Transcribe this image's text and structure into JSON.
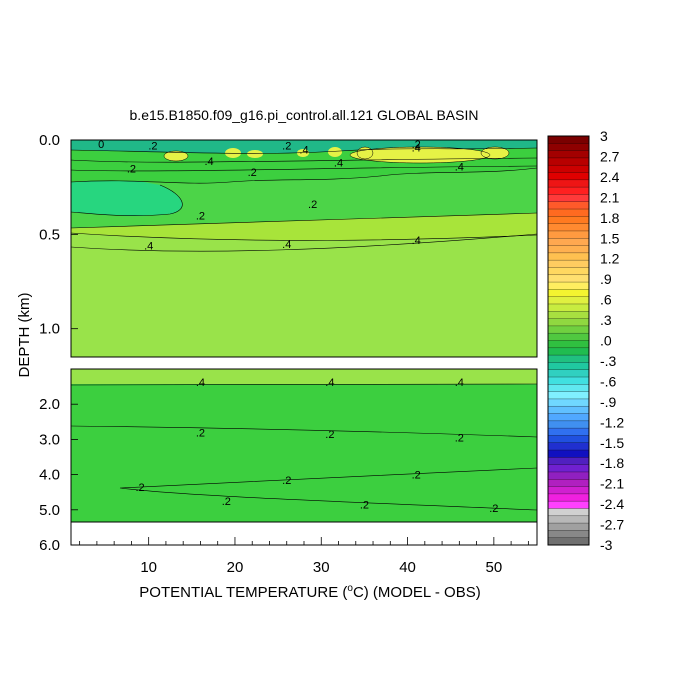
{
  "chart_data": {
    "type": "heatmap",
    "title": "b.e15.B1850.f09_g16.pi_control.all.121 GLOBAL BASIN",
    "xlabel_prefix": "POTENTIAL TEMPERATURE (",
    "xlabel_unit_sup": "o",
    "xlabel_suffix": "C) (MODEL - OBS)",
    "ylabel": "DEPTH (km)",
    "xlim": [
      1,
      55
    ],
    "x_ticks": [
      {
        "value": 10,
        "label": "10"
      },
      {
        "value": 20,
        "label": "20"
      },
      {
        "value": 30,
        "label": "30"
      },
      {
        "value": 40,
        "label": "40"
      },
      {
        "value": 50,
        "label": "50"
      }
    ],
    "upper_panel": {
      "ylim": [
        0.0,
        1.15
      ],
      "y_ticks": [
        {
          "value": 0.0,
          "label": "0.0"
        },
        {
          "value": 0.5,
          "label": "0.5"
        },
        {
          "value": 1.0,
          "label": "1.0"
        }
      ],
      "contour_labels": [
        {
          "x": 4.5,
          "y": 0.02,
          "text": "0"
        },
        {
          "x": 10.5,
          "y": 0.03,
          "text": ".2"
        },
        {
          "x": 17,
          "y": 0.11,
          "text": ".4"
        },
        {
          "x": 8,
          "y": 0.15,
          "text": ".2"
        },
        {
          "x": 22,
          "y": 0.17,
          "text": ".2"
        },
        {
          "x": 26,
          "y": 0.03,
          "text": ".2"
        },
        {
          "x": 28,
          "y": 0.05,
          "text": ".4"
        },
        {
          "x": 32,
          "y": 0.12,
          "text": ".4"
        },
        {
          "x": 41,
          "y": 0.02,
          "text": ".2"
        },
        {
          "x": 41,
          "y": 0.04,
          "text": ".4"
        },
        {
          "x": 46,
          "y": 0.14,
          "text": ".4"
        },
        {
          "x": 29,
          "y": 0.34,
          "text": ".2"
        },
        {
          "x": 16,
          "y": 0.4,
          "text": ".2"
        },
        {
          "x": 10,
          "y": 0.56,
          "text": ".4"
        },
        {
          "x": 26,
          "y": 0.55,
          "text": ".4"
        },
        {
          "x": 41,
          "y": 0.53,
          "text": ".4"
        }
      ]
    },
    "lower_panel": {
      "ylim": [
        1.0,
        6.0
      ],
      "y_ticks": [
        {
          "value": 2.0,
          "label": "2.0"
        },
        {
          "value": 3.0,
          "label": "3.0"
        },
        {
          "value": 4.0,
          "label": "4.0"
        },
        {
          "value": 5.0,
          "label": "5.0"
        },
        {
          "value": 6.0,
          "label": "6.0"
        }
      ],
      "contour_labels": [
        {
          "x": 16,
          "y": 1.37,
          "text": ".4"
        },
        {
          "x": 31,
          "y": 1.37,
          "text": ".4"
        },
        {
          "x": 46,
          "y": 1.37,
          "text": ".4"
        },
        {
          "x": 16,
          "y": 2.8,
          "text": ".2"
        },
        {
          "x": 31,
          "y": 2.85,
          "text": ".2"
        },
        {
          "x": 46,
          "y": 2.95,
          "text": ".2"
        },
        {
          "x": 9,
          "y": 4.35,
          "text": ".2"
        },
        {
          "x": 26,
          "y": 4.15,
          "text": ".2"
        },
        {
          "x": 41,
          "y": 4.0,
          "text": ".2"
        },
        {
          "x": 19,
          "y": 4.75,
          "text": ".2"
        },
        {
          "x": 35,
          "y": 4.85,
          "text": ".2"
        },
        {
          "x": 50,
          "y": 4.95,
          "text": ".2"
        }
      ]
    },
    "colorbar": {
      "labels": [
        "3",
        "2.7",
        "2.4",
        "2.1",
        "1.8",
        "1.5",
        "1.2",
        ".9",
        ".6",
        ".3",
        ".0",
        "-.3",
        "-.6",
        "-.9",
        "-1.2",
        "-1.5",
        "-1.8",
        "-2.1",
        "-2.4",
        "-2.7",
        "-3"
      ],
      "colors": [
        "#7a0000",
        "#8e0000",
        "#a30000",
        "#b80000",
        "#cc0000",
        "#e00000",
        "#ee1515",
        "#ff2020",
        "#ff3a3a",
        "#ff5a2a",
        "#ff6a20",
        "#ff7a20",
        "#ff8a30",
        "#ff9a40",
        "#ffa850",
        "#ffb050",
        "#ffc050",
        "#ffcc60",
        "#ffd860",
        "#ffe070",
        "#ffee60",
        "#f4f430",
        "#e0f040",
        "#c8ec40",
        "#a8e040",
        "#90d840",
        "#70d040",
        "#50c840",
        "#30c040",
        "#20bc50",
        "#20c080",
        "#20c8a0",
        "#30d0c0",
        "#40e0e0",
        "#60e8f0",
        "#80f0ff",
        "#70d8ff",
        "#60c0ff",
        "#50a8ff",
        "#4090f0",
        "#3070f0",
        "#2050e0",
        "#2030d0",
        "#1010c0",
        "#5020c0",
        "#7020d0",
        "#9020c0",
        "#b020c0",
        "#d020d0",
        "#f020e0",
        "#ff40ff",
        "#d0d0d0",
        "#b8b8b8",
        "#a0a0a0",
        "#888888",
        "#707070"
      ]
    },
    "fill_colors": {
      "main": "#99e34a",
      "light": "#a8e43a",
      "yellow": "#e6f246",
      "mid": "#4cd448",
      "deep": "#3ccf3f",
      "cyan": "#27d67f",
      "dark": "#20b888"
    }
  }
}
